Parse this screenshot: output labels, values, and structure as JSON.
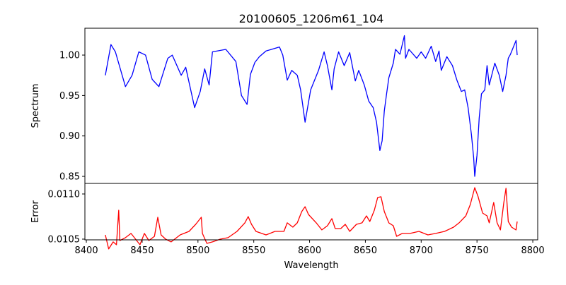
{
  "chart_data": [
    {
      "type": "line",
      "title": "20100605_1206m61_104",
      "xlabel": "",
      "ylabel": "Spectrum",
      "xlim": [
        8398.7,
        8804.4
      ],
      "ylim": [
        0.8413,
        1.0332
      ],
      "yticks": [
        0.85,
        0.9,
        0.95,
        1.0
      ],
      "ytick_labels": [
        "0.85",
        "0.90",
        "0.95",
        "1.00"
      ],
      "grid": false,
      "color": "#0000ff",
      "series": [
        {
          "name": "Spectrum",
          "x": [
            8417,
            8422,
            8426,
            8435,
            8441,
            8447,
            8453,
            8459,
            8465,
            8473,
            8477,
            8485,
            8489,
            8497,
            8502,
            8506,
            8510,
            8513,
            8525,
            8534,
            8539,
            8544,
            8547,
            8551,
            8555,
            8561,
            8573,
            8576,
            8580,
            8584,
            8589,
            8592,
            8596,
            8601,
            8608,
            8613,
            8616,
            8620,
            8622,
            8626,
            8631,
            8636,
            8641,
            8644,
            8649,
            8653,
            8657,
            8660,
            8663,
            8665,
            8667,
            8669,
            8671,
            8675,
            8677,
            8681,
            8685,
            8686,
            8689,
            8696,
            8700,
            8704,
            8709,
            8713,
            8716,
            8718,
            8723,
            8728,
            8732,
            8736,
            8739,
            8742,
            8745,
            8747,
            8748,
            8750,
            8752,
            8754,
            8757,
            8759,
            8761,
            8766,
            8770,
            8773,
            8776,
            8778,
            8780,
            8785,
            8786
          ],
          "y": [
            0.975,
            1.013,
            1.004,
            0.961,
            0.975,
            1.004,
            1.0,
            0.97,
            0.961,
            0.996,
            1.0,
            0.975,
            0.985,
            0.935,
            0.955,
            0.983,
            0.963,
            1.004,
            1.007,
            0.992,
            0.95,
            0.939,
            0.976,
            0.991,
            0.998,
            1.005,
            1.01,
            1.0,
            0.969,
            0.981,
            0.975,
            0.957,
            0.917,
            0.957,
            0.981,
            1.004,
            0.987,
            0.957,
            0.983,
            1.004,
            0.987,
            1.003,
            0.968,
            0.981,
            0.963,
            0.943,
            0.935,
            0.917,
            0.882,
            0.894,
            0.931,
            0.952,
            0.972,
            0.99,
            1.007,
            1.001,
            1.024,
            0.996,
            1.007,
            0.996,
            1.004,
            0.996,
            1.011,
            0.992,
            1.005,
            0.981,
            0.998,
            0.987,
            0.969,
            0.955,
            0.957,
            0.935,
            0.902,
            0.873,
            0.85,
            0.876,
            0.922,
            0.952,
            0.957,
            0.987,
            0.963,
            0.99,
            0.975,
            0.955,
            0.975,
            0.996,
            1.001,
            1.018,
            1.0
          ]
        }
      ]
    },
    {
      "type": "line",
      "xlabel": "Wavelength",
      "ylabel": "Error",
      "xlim": [
        8398.7,
        8804.4
      ],
      "ylim": [
        0.010492,
        0.011117
      ],
      "xticks": [
        8400,
        8450,
        8500,
        8550,
        8600,
        8650,
        8700,
        8750,
        8800
      ],
      "xtick_labels": [
        "8400",
        "8450",
        "8500",
        "8550",
        "8600",
        "8650",
        "8700",
        "8750",
        "8800"
      ],
      "yticks": [
        0.0105,
        0.011
      ],
      "ytick_labels": [
        "0.0105",
        "0.0110"
      ],
      "grid": false,
      "color": "#ff0000",
      "series": [
        {
          "name": "Error",
          "x": [
            8417,
            8420,
            8424,
            8427,
            8429,
            8430,
            8435,
            8440,
            8448,
            8452,
            8456,
            8461,
            8464,
            8467,
            8471,
            8476,
            8484,
            8492,
            8498,
            8503,
            8504,
            8508,
            8513,
            8520,
            8527,
            8535,
            8542,
            8545,
            8548,
            8552,
            8561,
            8569,
            8577,
            8580,
            8585,
            8589,
            8593,
            8596,
            8599,
            8606,
            8611,
            8616,
            8620,
            8623,
            8628,
            8632,
            8636,
            8642,
            8647,
            8651,
            8654,
            8658,
            8661,
            8664,
            8667,
            8671,
            8675,
            8678,
            8683,
            8690,
            8698,
            8706,
            8713,
            8721,
            8729,
            8734,
            8740,
            8744,
            8748,
            8751,
            8755,
            8759,
            8761,
            8765,
            8768,
            8771,
            8774,
            8776,
            8778,
            8781,
            8785,
            8786
          ],
          "y": [
            0.010547,
            0.010391,
            0.010469,
            0.010438,
            0.01082,
            0.010484,
            0.010516,
            0.010563,
            0.010438,
            0.010563,
            0.010484,
            0.010531,
            0.010742,
            0.010547,
            0.0105,
            0.010469,
            0.010547,
            0.010586,
            0.010664,
            0.010742,
            0.010563,
            0.010453,
            0.010469,
            0.0105,
            0.010516,
            0.010586,
            0.01068,
            0.01075,
            0.010664,
            0.010586,
            0.010547,
            0.010586,
            0.010586,
            0.01068,
            0.010633,
            0.01068,
            0.010805,
            0.010859,
            0.010773,
            0.01068,
            0.010602,
            0.010648,
            0.010727,
            0.010617,
            0.010617,
            0.010664,
            0.010586,
            0.010664,
            0.01068,
            0.010758,
            0.010695,
            0.01082,
            0.010961,
            0.010969,
            0.010805,
            0.01068,
            0.010648,
            0.010531,
            0.010563,
            0.010563,
            0.010586,
            0.010547,
            0.010563,
            0.010586,
            0.010633,
            0.01068,
            0.010758,
            0.010883,
            0.01107,
            0.010969,
            0.010789,
            0.010758,
            0.01068,
            0.010906,
            0.01068,
            0.010602,
            0.010898,
            0.011063,
            0.010695,
            0.010633,
            0.010602,
            0.010695
          ]
        }
      ]
    }
  ]
}
